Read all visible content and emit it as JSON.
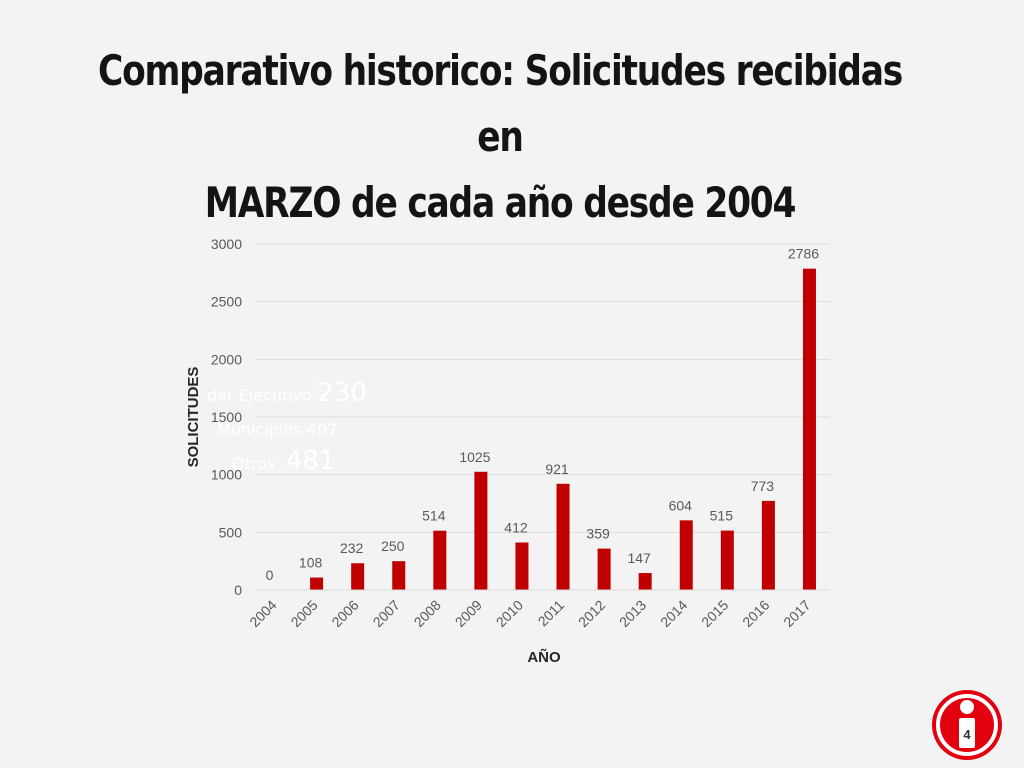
{
  "title": {
    "line1": "Comparativo historico: Solicitudes recibidas en",
    "line2": "MARZO de cada año desde 2004"
  },
  "overlay": {
    "line1_label": "der Ejecutivo:",
    "line1_value": "230",
    "line2": "Municipios:407",
    "line3_label": "Otros:",
    "line3_value": "481"
  },
  "slide_number": "4",
  "colors": {
    "bar": "#c00000",
    "background": "#f3f3f3",
    "logo": "#e3000f"
  },
  "chart_data": {
    "type": "bar",
    "title": "",
    "xlabel": "AÑO",
    "ylabel": "SOLICITUDES",
    "categories": [
      "2004",
      "2005",
      "2006",
      "2007",
      "2008",
      "2009",
      "2010",
      "2011",
      "2012",
      "2013",
      "2014",
      "2015",
      "2016",
      "2017"
    ],
    "values": [
      0,
      108,
      232,
      250,
      514,
      1025,
      412,
      921,
      359,
      147,
      604,
      515,
      773,
      2786
    ],
    "ylim": [
      0,
      3000
    ],
    "yticks": [
      0,
      500,
      1000,
      1500,
      2000,
      2500,
      3000
    ],
    "grid": true,
    "legend": "none"
  }
}
